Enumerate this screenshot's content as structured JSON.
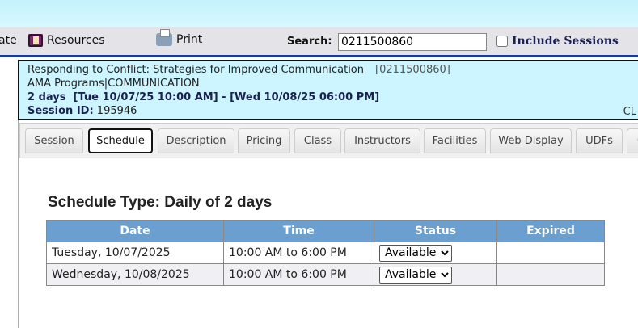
{
  "toolbar": {
    "partial_label": "ate",
    "resources_label": "Resources",
    "print_label": "Print",
    "search_label": "Search:",
    "search_value": "0211500860",
    "include_sessions_label": "Include Sessions"
  },
  "info": {
    "title": "Responding to Conflict: Strategies for Improved Communication",
    "code": "[0211500860]",
    "category": "AMA Programs|COMMUNICATION",
    "dates": "2 days  [Tue 10/07/25 10:00 AM] - [Wed 10/08/25 06:00 PM]",
    "session_id_label": "Session ID:",
    "session_id": "195946",
    "right_text": "CL"
  },
  "tabs": [
    "Session",
    "Schedule",
    "Description",
    "Pricing",
    "Class",
    "Instructors",
    "Facilities",
    "Web Display",
    "UDFs",
    "C"
  ],
  "active_tab": "Schedule",
  "schedule": {
    "title": "Schedule Type: Daily of 2 days",
    "columns": [
      "Date",
      "Time",
      "Status",
      "Expired"
    ],
    "rows": [
      {
        "date": "Tuesday, 10/07/2025",
        "time": "10:00 AM to 6:00 PM",
        "status": "Available",
        "expired": ""
      },
      {
        "date": "Wednesday, 10/08/2025",
        "time": "10:00 AM to 6:00 PM",
        "status": "Available",
        "expired": ""
      }
    ]
  },
  "colors": {
    "header": "#6b9fcf",
    "info_bg": "#ccf5ff",
    "accent": "#1a3a9a"
  }
}
